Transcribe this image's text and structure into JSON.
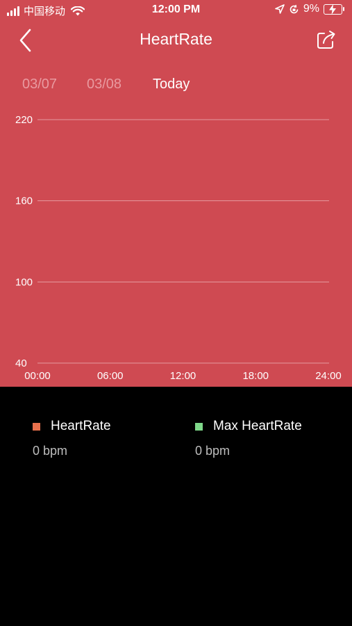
{
  "status_bar": {
    "carrier": "中国移动",
    "time": "12:00 PM",
    "battery": "9%"
  },
  "nav": {
    "title": "HeartRate",
    "back_icon": "chevron-left-icon",
    "share_icon": "share-icon"
  },
  "date_tabs": [
    {
      "label": "03/07",
      "active": false
    },
    {
      "label": "03/08",
      "active": false
    },
    {
      "label": "Today",
      "active": true
    }
  ],
  "colors": {
    "header_bg": "#cf4a52",
    "heartrate": "#e8704c",
    "max_heartrate": "#7fd88a"
  },
  "chart_data": {
    "type": "line",
    "title": "",
    "xlabel": "",
    "ylabel": "",
    "y_ticks": [
      "220",
      "160",
      "100",
      "40"
    ],
    "x_ticks": [
      "00:00",
      "06:00",
      "12:00",
      "18:00",
      "24:00"
    ],
    "ylim": [
      40,
      220
    ],
    "grid": true,
    "series": [
      {
        "name": "HeartRate",
        "values": []
      },
      {
        "name": "Max HeartRate",
        "values": []
      }
    ]
  },
  "legend": [
    {
      "label": "HeartRate",
      "value": "0 bpm"
    },
    {
      "label": "Max HeartRate",
      "value": "0 bpm"
    }
  ]
}
